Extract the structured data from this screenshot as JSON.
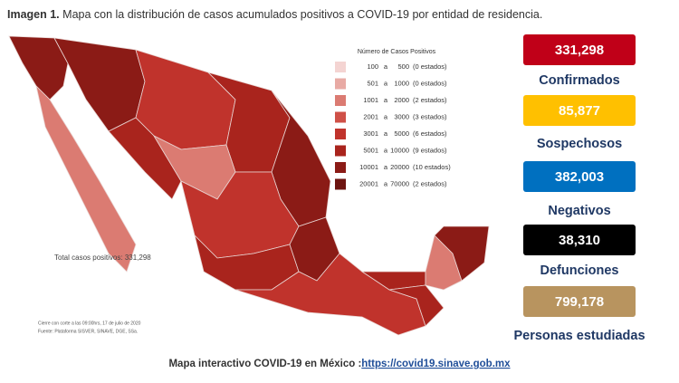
{
  "header": {
    "title_bold": "Imagen 1.",
    "title": "Mapa con la distribución de casos acumulados positivos a COVID-19 por entidad de residencia."
  },
  "legend": {
    "title": "Número de Casos Positivos",
    "items": [
      {
        "from": "100",
        "sep": "a",
        "to": "500",
        "count": "(0 estados)",
        "color": "#f4d4d2"
      },
      {
        "from": "501",
        "sep": "a",
        "to": "1000",
        "count": "(0 estados)",
        "color": "#e8aaa4"
      },
      {
        "from": "1001",
        "sep": "a",
        "to": "2000",
        "count": "(2 estados)",
        "color": "#db7b72"
      },
      {
        "from": "2001",
        "sep": "a",
        "to": "3000",
        "count": "(3 estados)",
        "color": "#cf5047"
      },
      {
        "from": "3001",
        "sep": "a",
        "to": "5000",
        "count": "(6 estados)",
        "color": "#c0332c"
      },
      {
        "from": "5001",
        "sep": "a",
        "to": "10000",
        "count": "(9 estados)",
        "color": "#a9241d"
      },
      {
        "from": "10001",
        "sep": "a",
        "to": "20000",
        "count": "(10 estados)",
        "color": "#8b1b16"
      },
      {
        "from": "20001",
        "sep": "a",
        "to": "70000",
        "count": "(2 estados)",
        "color": "#6d1410"
      }
    ]
  },
  "total": "Total casos positivos: 331,298",
  "notes": [
    "Cierre con corte a las 09:00hrs, 17 de julio de 2020",
    "Fuente: Plataforma SISVER, SINAVE, DGE, SSa."
  ],
  "stats": [
    {
      "value": "331,298",
      "label": "Confirmados",
      "color": "#c00018"
    },
    {
      "value": "85,877",
      "label": "Sospechosos",
      "color": "#ffc000"
    },
    {
      "value": "382,003",
      "label": "Negativos",
      "color": "#0070c0"
    },
    {
      "value": "38,310",
      "label": "Defunciones",
      "color": "#000000"
    },
    {
      "value": "799,178",
      "label": "Personas estudiadas",
      "color": "#b8945f"
    }
  ],
  "footer": {
    "text": "Mapa interactivo COVID-19 en México :",
    "link": "https://covid19.sinave.gob.mx"
  }
}
